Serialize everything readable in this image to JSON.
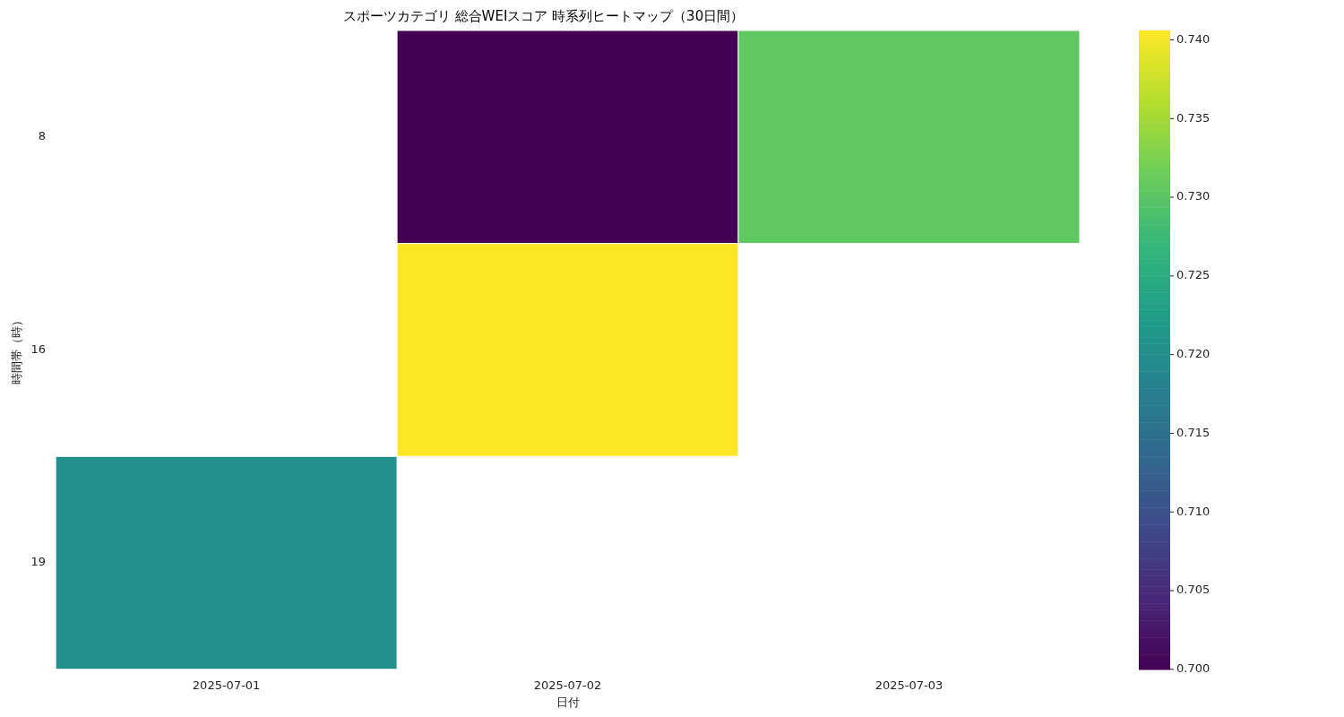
{
  "chart_data": {
    "type": "heatmap",
    "title": "スポーツカテゴリ 総合WEIスコア 時系列ヒートマップ（30日間）",
    "xlabel": "日付",
    "ylabel": "時間帯（時）",
    "categories": [
      "2025-07-01",
      "2025-07-02",
      "2025-07-03"
    ],
    "y_categories": [
      "8",
      "16",
      "19"
    ],
    "cells": [
      [
        null,
        0.7,
        0.7305
      ],
      [
        null,
        0.7406,
        null
      ],
      [
        0.7203,
        null,
        null
      ]
    ],
    "clim": [
      0.7,
      0.7406
    ],
    "cticks": [
      {
        "value": 0.7,
        "label": "0.700"
      },
      {
        "value": 0.705,
        "label": "0.705"
      },
      {
        "value": 0.71,
        "label": "0.710"
      },
      {
        "value": 0.715,
        "label": "0.715"
      },
      {
        "value": 0.72,
        "label": "0.720"
      },
      {
        "value": 0.725,
        "label": "0.725"
      },
      {
        "value": 0.73,
        "label": "0.730"
      },
      {
        "value": 0.735,
        "label": "0.735"
      },
      {
        "value": 0.74,
        "label": "0.740"
      }
    ]
  }
}
